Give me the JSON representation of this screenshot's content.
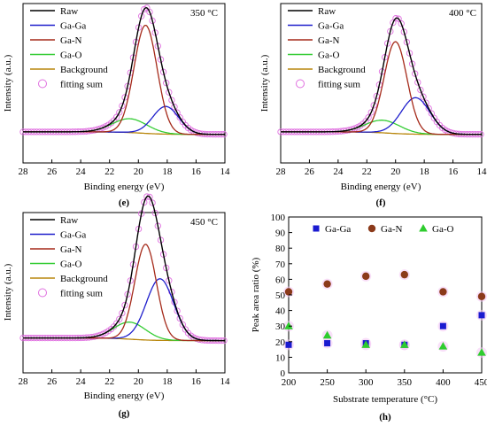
{
  "chart_data": [
    {
      "panel": "(e)",
      "type": "line",
      "temperature_label": "350 °C",
      "xlabel": "Binding energy (eV)",
      "ylabel": "Intensity (a.u.)",
      "xlim": [
        28,
        14
      ],
      "x_ticks": [
        "28",
        "26",
        "24",
        "22",
        "20",
        "18",
        "16",
        "14"
      ],
      "x_tick_values": [
        28,
        26,
        24,
        22,
        20,
        18,
        16,
        14
      ],
      "x_reversed": true,
      "legend": [
        "Raw",
        "Ga-Ga",
        "Ga-N",
        "Ga-O",
        "Background",
        "fitting sum"
      ],
      "background": {
        "low_x": 28,
        "low_y": 0.05,
        "mid_x": 19.8,
        "mid_y": 0.06,
        "high_x": 14,
        "high_y": 0.03
      },
      "peaks": {
        "ga_ga": {
          "center": 18.1,
          "height": 0.22,
          "width": 0.9
        },
        "ga_n": {
          "center": 19.5,
          "height": 0.86,
          "width": 0.8
        },
        "ga_o": {
          "center": 20.6,
          "height": 0.11,
          "width": 1.2
        }
      }
    },
    {
      "panel": "(f)",
      "type": "line",
      "temperature_label": "400 °C",
      "xlabel": "Binding energy (eV)",
      "ylabel": "Intensity (a.u.)",
      "xlim": [
        28,
        14
      ],
      "x_ticks": [
        "28",
        "26",
        "24",
        "22",
        "20",
        "18",
        "16",
        "14"
      ],
      "x_tick_values": [
        28,
        26,
        24,
        22,
        20,
        18,
        16,
        14
      ],
      "x_reversed": true,
      "legend": [
        "Raw",
        "Ga-Ga",
        "Ga-N",
        "Ga-O",
        "Background",
        "fitting sum"
      ],
      "background": {
        "low_x": 28,
        "low_y": 0.05,
        "mid_x": 20.5,
        "mid_y": 0.07,
        "high_x": 14,
        "high_y": 0.03
      },
      "peaks": {
        "ga_ga": {
          "center": 18.6,
          "height": 0.29,
          "width": 1.0
        },
        "ga_n": {
          "center": 20.0,
          "height": 0.73,
          "width": 0.8
        },
        "ga_o": {
          "center": 20.9,
          "height": 0.1,
          "width": 1.2
        }
      }
    },
    {
      "panel": "(g)",
      "type": "line",
      "temperature_label": "450 °C",
      "xlabel": "Binding energy (eV)",
      "ylabel": "Intensity (a.u.)",
      "xlim": [
        28,
        14
      ],
      "x_ticks": [
        "28",
        "26",
        "24",
        "22",
        "20",
        "18",
        "16",
        "14"
      ],
      "x_tick_values": [
        28,
        26,
        24,
        22,
        20,
        18,
        16,
        14
      ],
      "x_reversed": true,
      "legend": [
        "Raw",
        "Ga-Ga",
        "Ga-N",
        "Ga-O",
        "Background",
        "fitting sum"
      ],
      "background": {
        "low_x": 28,
        "low_y": 0.05,
        "mid_x": 20.5,
        "mid_y": 0.06,
        "high_x": 14,
        "high_y": 0.03
      },
      "peaks": {
        "ga_ga": {
          "center": 18.5,
          "height": 0.47,
          "width": 0.95
        },
        "ga_n": {
          "center": 19.5,
          "height": 0.73,
          "width": 0.75
        },
        "ga_o": {
          "center": 20.6,
          "height": 0.13,
          "width": 1.1
        }
      }
    },
    {
      "panel": "(h)",
      "type": "scatter",
      "xlabel": "Substrate temperature (°C)",
      "ylabel": "Peak area ratio (%)",
      "xlim": [
        200,
        450
      ],
      "ylim": [
        0,
        100
      ],
      "x_ticks": [
        "200",
        "250",
        "300",
        "350",
        "400",
        "450"
      ],
      "x_tick_values": [
        200,
        250,
        300,
        350,
        400,
        450
      ],
      "y_ticks": [
        "0",
        "10",
        "20",
        "30",
        "40",
        "50",
        "60",
        "70",
        "80",
        "90",
        "100"
      ],
      "y_tick_values": [
        0,
        10,
        20,
        30,
        40,
        50,
        60,
        70,
        80,
        90,
        100
      ],
      "x": [
        200,
        250,
        300,
        350,
        400,
        450
      ],
      "series": [
        {
          "name": "Ga-Ga",
          "values": [
            18,
            19,
            19,
            18,
            30,
            37
          ]
        },
        {
          "name": "Ga-N",
          "values": [
            52,
            57,
            62,
            63,
            52,
            49
          ]
        },
        {
          "name": "Ga-O",
          "values": [
            30,
            24,
            18,
            18,
            17,
            13
          ]
        }
      ]
    }
  ],
  "colors": {
    "raw": "#000000",
    "ga_ga": "#1f1fcc",
    "ga_n": "#a52a1a",
    "ga_o": "#33cc33",
    "background": "#b8860b",
    "fitting_sum": "#e070e0",
    "scatter_ga_ga": "#1a1ad0",
    "scatter_ga_n": "#8b3a1a",
    "scatter_ga_o": "#2ecc2e"
  }
}
